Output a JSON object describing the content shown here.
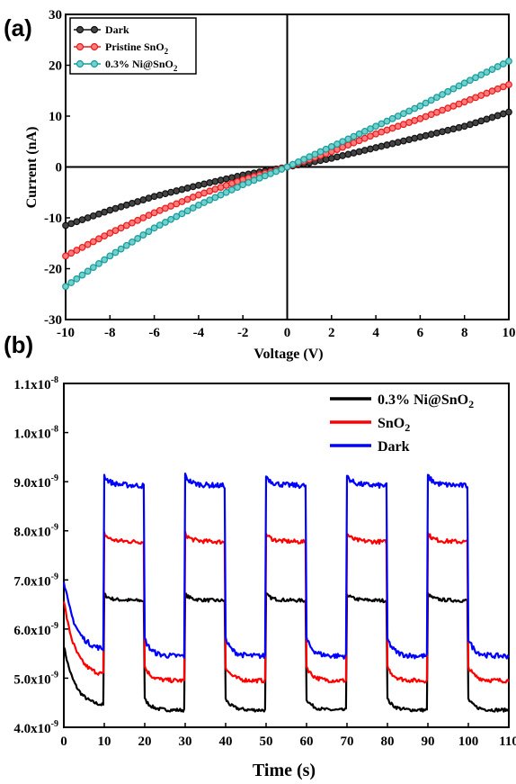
{
  "chart_data": [
    {
      "panel": "(a)",
      "type": "line",
      "xlabel": "Voltage (V)",
      "ylabel": "Current (nA)",
      "xlim": [
        -10,
        10
      ],
      "ylim": [
        -30,
        30
      ],
      "xticks": [
        -10,
        -8,
        -6,
        -4,
        -2,
        0,
        2,
        4,
        6,
        8,
        10
      ],
      "yticks": [
        -30,
        -20,
        -10,
        0,
        10,
        20,
        30
      ],
      "grid": false,
      "legend_position": "top-left",
      "series": [
        {
          "name": "Dark",
          "name_main": "Dark",
          "name_sub": "",
          "name_tail": "",
          "color": "#111111",
          "marker_face": "#444444",
          "x": [
            -10,
            -8,
            -6,
            -4,
            -2,
            0,
            2,
            4,
            6,
            8,
            10
          ],
          "y": [
            -11.5,
            -8.5,
            -5.8,
            -3.6,
            -1.6,
            0,
            1.7,
            3.8,
            5.9,
            8.0,
            10.8
          ]
        },
        {
          "name": "Pristine SnO2",
          "name_main": "Pristine SnO",
          "name_sub": "2",
          "name_tail": "",
          "color": "#e81b1b",
          "marker_face": "#ff7b7b",
          "x": [
            -10,
            -8,
            -6,
            -4,
            -2,
            0,
            2,
            4,
            6,
            8,
            10
          ],
          "y": [
            -17.5,
            -13.0,
            -9.0,
            -5.5,
            -2.5,
            0,
            3.0,
            6.5,
            9.5,
            12.8,
            16.2
          ]
        },
        {
          "name": "0.3% Ni@SnO2",
          "name_main": "0.3% Ni@SnO",
          "name_sub": "2",
          "name_tail": "",
          "color": "#1a9a9a",
          "marker_face": "#6fd0cc",
          "x": [
            -10,
            -8,
            -6,
            -4,
            -2,
            0,
            2,
            4,
            6,
            8,
            10
          ],
          "y": [
            -23.5,
            -17.5,
            -12.0,
            -7.5,
            -3.5,
            0,
            4.0,
            8.0,
            12.0,
            16.5,
            20.8
          ]
        }
      ]
    },
    {
      "panel": "(b)",
      "type": "line",
      "xlabel": "Time (s)",
      "ylabel": "",
      "xlim": [
        0,
        110
      ],
      "ylim": [
        4e-09,
        1.1e-08
      ],
      "xticks": [
        0,
        10,
        20,
        30,
        40,
        50,
        60,
        70,
        80,
        90,
        100,
        110
      ],
      "ytick_values": [
        4e-09,
        5e-09,
        6e-09,
        7e-09,
        8e-09,
        9e-09,
        1e-08,
        1.1e-08
      ],
      "ytick_labels": [
        {
          "main": "4.0x10",
          "exp": "-9"
        },
        {
          "main": "5.0x10",
          "exp": "-9"
        },
        {
          "main": "6.0x10",
          "exp": "-9"
        },
        {
          "main": "7.0x10",
          "exp": "-9"
        },
        {
          "main": "8.0x10",
          "exp": "-9"
        },
        {
          "main": "9.0x10",
          "exp": "-9"
        },
        {
          "main": "1.0x10",
          "exp": "-8"
        },
        {
          "main": "1.1x10",
          "exp": "-8"
        }
      ],
      "grid": false,
      "legend_position": "top-right",
      "on_intervals": [
        [
          10,
          20
        ],
        [
          30,
          40
        ],
        [
          50,
          60
        ],
        [
          70,
          80
        ],
        [
          90,
          100
        ]
      ],
      "series": [
        {
          "name": "0.3% Ni@SnO2",
          "name_main": "0.3% Ni@SnO",
          "name_sub": "2",
          "name_tail": "",
          "color": "#000000",
          "on_level": 6.6e-09,
          "off_level": 4.35e-09,
          "start": 5.6e-09
        },
        {
          "name": "SnO2",
          "name_main": "SnO",
          "name_sub": "2",
          "name_tail": "",
          "color": "#ff0000",
          "on_level": 7.8e-09,
          "off_level": 4.95e-09,
          "start": 6.5e-09
        },
        {
          "name": "Dark",
          "name_main": "Dark",
          "name_sub": "",
          "name_tail": "",
          "color": "#0000ff",
          "on_level": 8.95e-09,
          "off_level": 5.45e-09,
          "start": 6.9e-09
        }
      ]
    }
  ]
}
